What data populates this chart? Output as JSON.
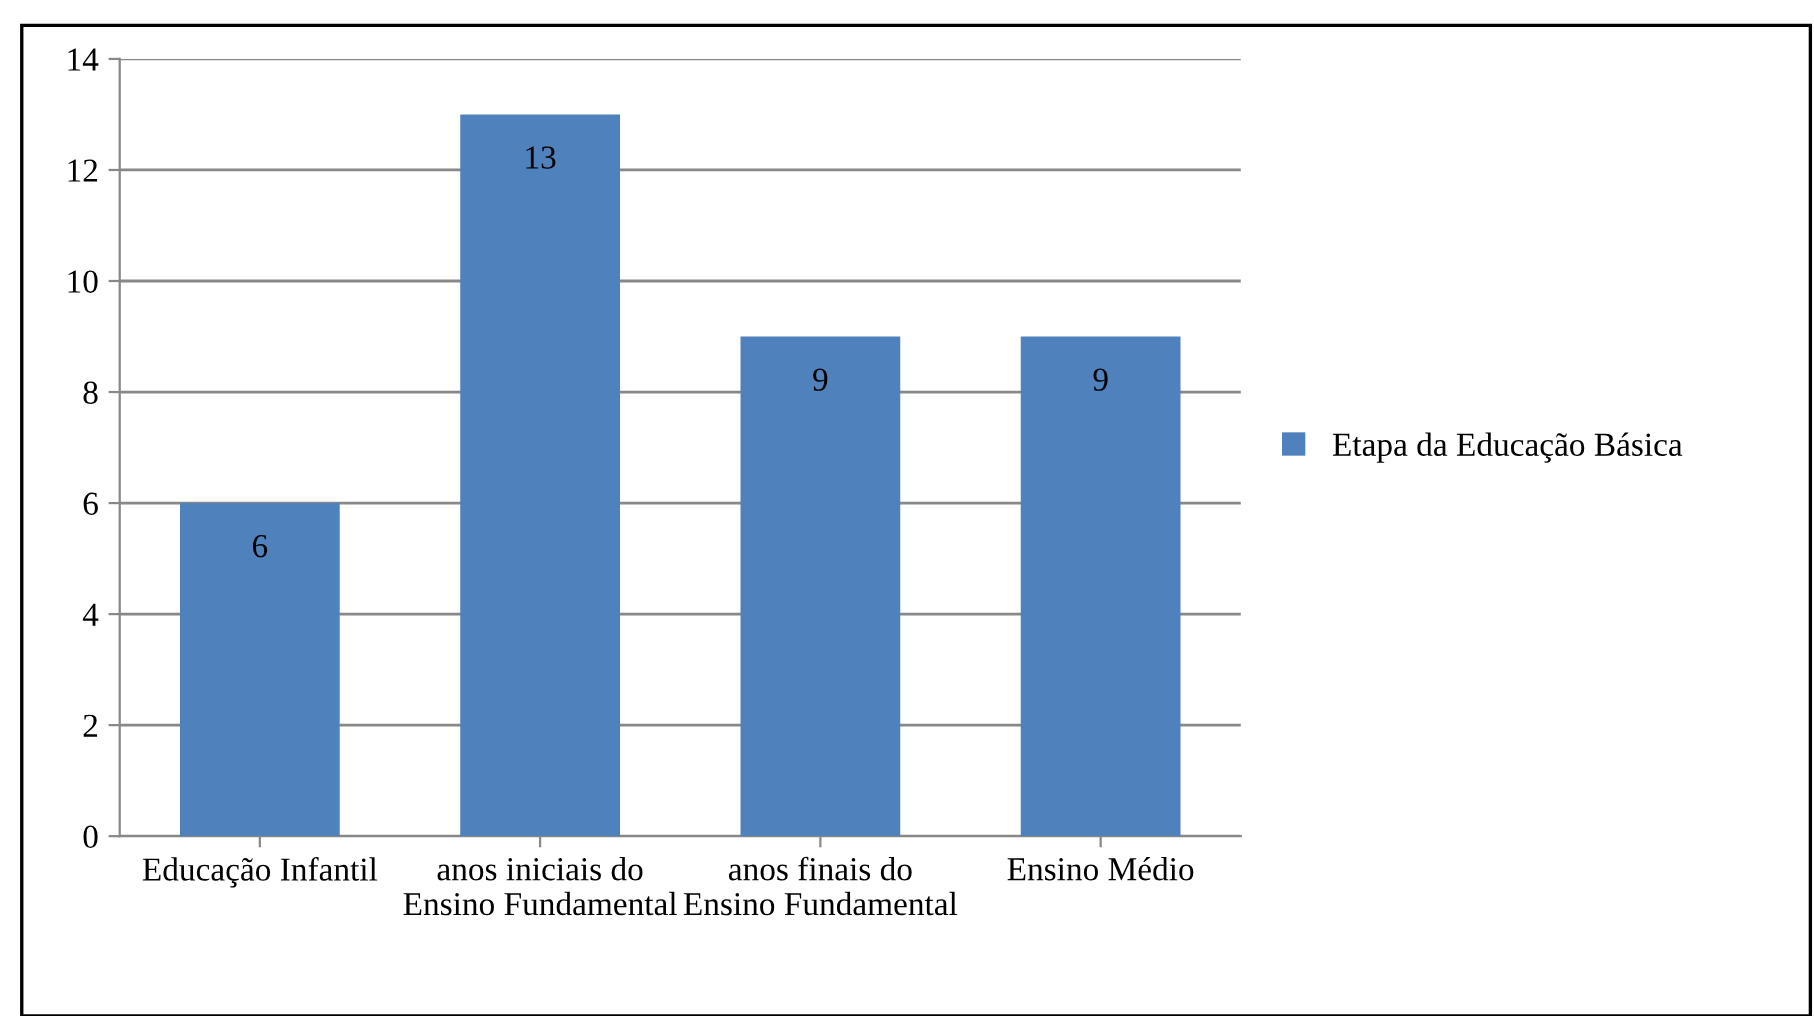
{
  "chart_data": {
    "type": "bar",
    "categories": [
      "Educação Infantil",
      "anos iniciais do Ensino Fundamental",
      "anos finais do Ensino Fundamental",
      "Ensino Médio"
    ],
    "series": [
      {
        "name": "Etapa da Educação Básica",
        "color": "#4f81bd",
        "values": [
          6,
          13,
          9,
          9
        ]
      }
    ],
    "ylim": [
      0,
      14
    ],
    "yticks": [
      0,
      2,
      4,
      6,
      8,
      10,
      12,
      14
    ],
    "grid": "y",
    "legend": "right",
    "data_labels": true
  }
}
